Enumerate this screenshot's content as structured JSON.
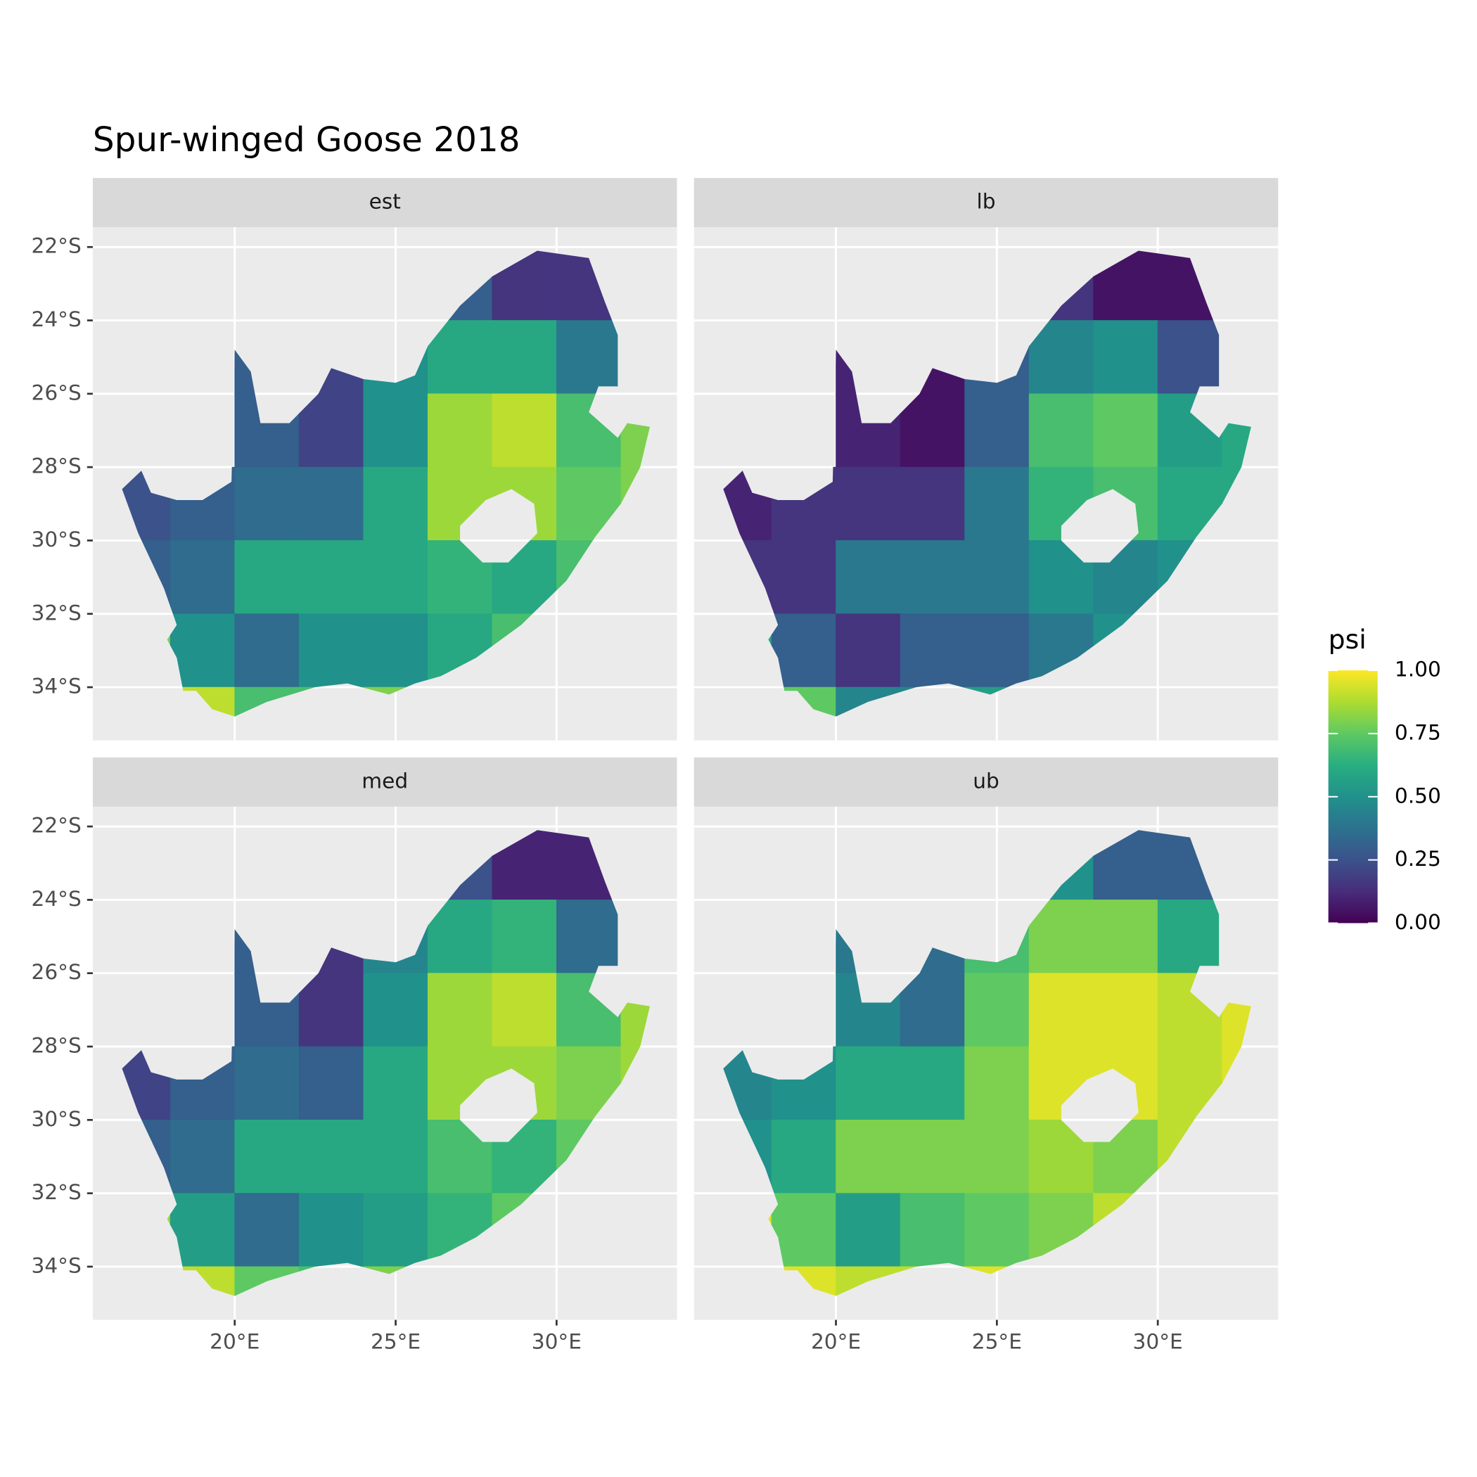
{
  "chart_data": {
    "type": "raster-map",
    "title": "Spur-winged Goose 2018",
    "colormap": "viridis",
    "x": [
      17,
      19,
      21,
      23,
      25,
      27,
      29,
      31,
      33
    ],
    "y": [
      -23,
      -25,
      -27,
      -29,
      -31,
      -33,
      -35
    ],
    "xlim": [
      15.59,
      33.74
    ],
    "ylim": [
      -35.45,
      -21.46
    ],
    "xticks": [
      {
        "value": 20,
        "label": "20°E"
      },
      {
        "value": 25,
        "label": "25°E"
      },
      {
        "value": 30,
        "label": "30°E"
      }
    ],
    "yticks": [
      {
        "value": -22,
        "label": "22°S"
      },
      {
        "value": -24,
        "label": "24°S"
      },
      {
        "value": -26,
        "label": "26°S"
      },
      {
        "value": -28,
        "label": "28°S"
      },
      {
        "value": -30,
        "label": "30°S"
      },
      {
        "value": -32,
        "label": "32°S"
      },
      {
        "value": -34,
        "label": "34°S"
      }
    ],
    "grid": true,
    "legend": {
      "title": "psi",
      "lim": [
        0,
        1
      ],
      "ticks": [
        {
          "value": 0,
          "label": "0.00"
        },
        0.25,
        {
          "value": 0.5,
          "label": "0.50"
        },
        0.75,
        {
          "value": 1,
          "label": "1.00"
        }
      ]
    },
    "facets": [
      {
        "name": "est",
        "values": [
          [
            null,
            null,
            null,
            null,
            null,
            0.3,
            0.15,
            0.15,
            null
          ],
          [
            null,
            null,
            0.3,
            0.2,
            0.5,
            0.6,
            0.6,
            0.4,
            null
          ],
          [
            null,
            null,
            0.3,
            0.2,
            0.5,
            0.85,
            0.9,
            0.7,
            0.8
          ],
          [
            0.25,
            0.3,
            0.35,
            0.35,
            0.6,
            0.85,
            0.85,
            0.75,
            0.8
          ],
          [
            0.3,
            0.35,
            0.6,
            0.6,
            0.6,
            0.65,
            0.6,
            0.7,
            null
          ],
          [
            0.8,
            0.5,
            0.35,
            0.5,
            0.5,
            0.6,
            0.7,
            null,
            null
          ],
          [
            null,
            0.9,
            0.7,
            0.7,
            0.8,
            null,
            null,
            null,
            null
          ]
        ]
      },
      {
        "name": "lb",
        "values": [
          [
            null,
            null,
            null,
            null,
            null,
            0.15,
            0.05,
            0.05,
            null
          ],
          [
            null,
            null,
            0.1,
            0.05,
            0.3,
            0.45,
            0.5,
            0.25,
            null
          ],
          [
            null,
            null,
            0.1,
            0.05,
            0.3,
            0.7,
            0.75,
            0.55,
            0.6
          ],
          [
            0.1,
            0.15,
            0.15,
            0.15,
            0.4,
            0.65,
            0.7,
            0.6,
            0.6
          ],
          [
            0.15,
            0.15,
            0.4,
            0.4,
            0.4,
            0.5,
            0.45,
            0.5,
            null
          ],
          [
            0.6,
            0.3,
            0.15,
            0.3,
            0.3,
            0.4,
            0.5,
            null,
            null
          ],
          [
            null,
            0.75,
            0.45,
            0.45,
            0.55,
            null,
            null,
            null,
            null
          ]
        ]
      },
      {
        "name": "med",
        "values": [
          [
            null,
            null,
            null,
            null,
            null,
            0.25,
            0.1,
            0.1,
            null
          ],
          [
            null,
            null,
            0.3,
            0.15,
            0.45,
            0.6,
            0.65,
            0.35,
            null
          ],
          [
            null,
            null,
            0.3,
            0.15,
            0.5,
            0.85,
            0.9,
            0.7,
            0.85
          ],
          [
            0.2,
            0.3,
            0.35,
            0.3,
            0.6,
            0.85,
            0.85,
            0.8,
            0.85
          ],
          [
            0.3,
            0.35,
            0.6,
            0.6,
            0.6,
            0.7,
            0.65,
            0.75,
            null
          ],
          [
            0.85,
            0.55,
            0.35,
            0.5,
            0.55,
            0.65,
            0.75,
            null,
            null
          ],
          [
            null,
            0.9,
            0.75,
            0.7,
            0.8,
            null,
            null,
            null,
            null
          ]
        ]
      },
      {
        "name": "ub",
        "values": [
          [
            null,
            null,
            null,
            null,
            null,
            0.5,
            0.3,
            0.3,
            null
          ],
          [
            null,
            null,
            0.4,
            0.35,
            0.7,
            0.8,
            0.8,
            0.6,
            null
          ],
          [
            null,
            null,
            0.45,
            0.35,
            0.75,
            0.95,
            0.95,
            0.9,
            0.95
          ],
          [
            0.45,
            0.5,
            0.6,
            0.6,
            0.8,
            0.95,
            0.95,
            0.9,
            0.95
          ],
          [
            0.5,
            0.6,
            0.8,
            0.8,
            0.8,
            0.85,
            0.8,
            0.9,
            null
          ],
          [
            0.95,
            0.75,
            0.55,
            0.7,
            0.75,
            0.8,
            0.9,
            null,
            null
          ],
          [
            null,
            0.95,
            0.9,
            0.9,
            0.95,
            null,
            null,
            null,
            null
          ]
        ]
      }
    ]
  }
}
